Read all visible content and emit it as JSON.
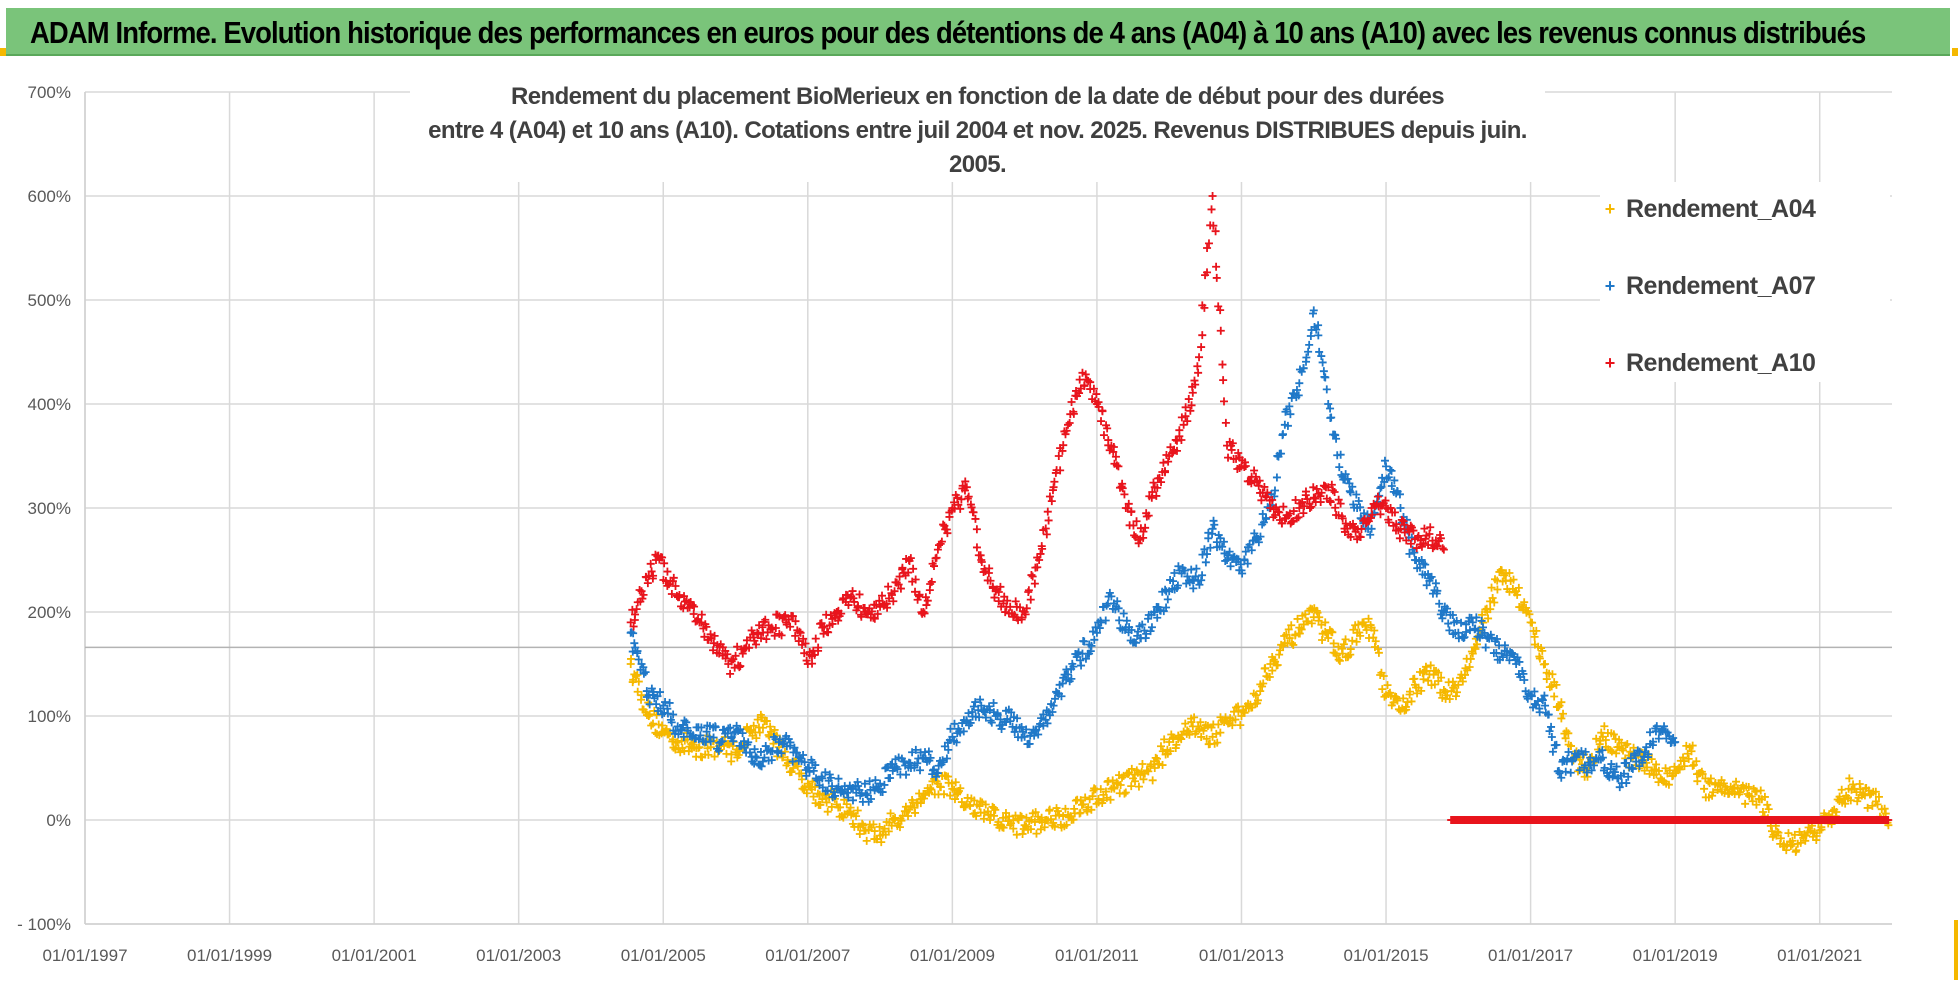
{
  "banner": {
    "title": "ADAM Informe. Evolution historique des performances en euros pour des détentions de 4 ans (A04) à 10 ans (A10) avec les revenus connus distribués"
  },
  "chart_data": {
    "type": "scatter",
    "title_line1": "Rendement du placement BioMerieux en fonction de la date de début pour des durées",
    "title_line2": "entre 4 (A04) et 10 ans (A10).  Cotations entre juil 2004 et nov. 2025. Revenus DISTRIBUES depuis juin. 2005.",
    "xlabel": "",
    "ylabel": "",
    "xlim": [
      1997.0,
      2022.0
    ],
    "ylim": [
      -100,
      700
    ],
    "y_ticks": [
      -100,
      0,
      100,
      200,
      300,
      400,
      500,
      600,
      700
    ],
    "y_tick_labels": [
      "- 100%",
      "0%",
      "100%",
      "200%",
      "300%",
      "400%",
      "500%",
      "600%",
      "700%"
    ],
    "x_ticks": [
      1997,
      1999,
      2001,
      2003,
      2005,
      2007,
      2009,
      2011,
      2013,
      2015,
      2017,
      2019,
      2021
    ],
    "x_tick_labels": [
      "01/01/1997",
      "01/01/1999",
      "01/01/2001",
      "01/01/2003",
      "01/01/2005",
      "01/01/2007",
      "01/01/2009",
      "01/01/2011",
      "01/01/2013",
      "01/01/2015",
      "01/01/2017",
      "01/01/2019",
      "01/01/2021"
    ],
    "reference_line_y": 166,
    "legend_position": "top-right",
    "series": [
      {
        "name": "Rendement_A04",
        "color": "#f5b800",
        "x": [
          2004.55,
          2004.6,
          2004.7,
          2004.8,
          2005.0,
          2005.2,
          2005.5,
          2005.8,
          2006.0,
          2006.2,
          2006.4,
          2006.6,
          2006.8,
          2007.0,
          2007.2,
          2007.4,
          2007.6,
          2007.8,
          2008.0,
          2008.2,
          2008.4,
          2008.6,
          2008.8,
          2009.0,
          2009.2,
          2009.5,
          2009.8,
          2010.0,
          2010.3,
          2010.6,
          2010.9,
          2011.2,
          2011.5,
          2011.8,
          2012.0,
          2012.2,
          2012.4,
          2012.6,
          2012.8,
          2013.0,
          2013.2,
          2013.4,
          2013.6,
          2013.8,
          2014.0,
          2014.2,
          2014.4,
          2014.6,
          2014.8,
          2015.0,
          2015.2,
          2015.4,
          2015.6,
          2015.8,
          2016.0,
          2016.2,
          2016.4,
          2016.6,
          2016.8,
          2017.0,
          2017.2,
          2017.4,
          2017.6,
          2017.8,
          2018.0,
          2018.2,
          2018.4,
          2018.6,
          2018.8,
          2019.0,
          2019.2,
          2019.4,
          2019.6,
          2019.8,
          2020.0,
          2020.2,
          2020.4,
          2020.6,
          2020.8,
          2021.0,
          2021.2,
          2021.4,
          2021.6,
          2021.8,
          2021.95
        ],
        "y": [
          150,
          140,
          120,
          100,
          85,
          75,
          70,
          72,
          65,
          85,
          95,
          70,
          50,
          35,
          20,
          15,
          5,
          -10,
          -15,
          0,
          10,
          25,
          35,
          30,
          15,
          5,
          -5,
          -5,
          0,
          5,
          20,
          30,
          40,
          50,
          75,
          85,
          90,
          80,
          95,
          100,
          120,
          150,
          170,
          185,
          195,
          175,
          160,
          180,
          185,
          120,
          105,
          130,
          140,
          125,
          130,
          160,
          200,
          240,
          220,
          190,
          150,
          110,
          60,
          50,
          80,
          70,
          60,
          55,
          40,
          45,
          70,
          30,
          35,
          30,
          25,
          20,
          -15,
          -25,
          -20,
          -10,
          10,
          30,
          25,
          15,
          -5
        ]
      },
      {
        "name": "Rendement_A07",
        "color": "#1f78c8",
        "x": [
          2004.55,
          2004.6,
          2004.7,
          2004.8,
          2005.0,
          2005.2,
          2005.4,
          2005.6,
          2005.8,
          2006.0,
          2006.2,
          2006.4,
          2006.6,
          2006.8,
          2007.0,
          2007.2,
          2007.4,
          2007.6,
          2007.8,
          2008.0,
          2008.2,
          2008.4,
          2008.6,
          2008.8,
          2009.0,
          2009.2,
          2009.4,
          2009.6,
          2009.8,
          2010.0,
          2010.2,
          2010.4,
          2010.6,
          2010.8,
          2011.0,
          2011.2,
          2011.4,
          2011.6,
          2011.8,
          2012.0,
          2012.2,
          2012.4,
          2012.6,
          2012.8,
          2013.0,
          2013.2,
          2013.4,
          2013.6,
          2013.8,
          2014.0,
          2014.2,
          2014.4,
          2014.6,
          2014.8,
          2015.0,
          2015.2,
          2015.4,
          2015.6,
          2015.8,
          2016.0,
          2016.2,
          2016.4,
          2016.6,
          2016.8,
          2017.0,
          2017.2,
          2017.4,
          2017.6,
          2017.8,
          2018.0,
          2018.2,
          2018.4,
          2018.6,
          2018.8,
          2019.0
        ],
        "y": [
          180,
          170,
          150,
          120,
          110,
          90,
          80,
          85,
          75,
          85,
          65,
          60,
          75,
          65,
          50,
          40,
          30,
          30,
          25,
          35,
          50,
          55,
          60,
          45,
          80,
          95,
          110,
          100,
          95,
          80,
          90,
          110,
          140,
          160,
          180,
          215,
          185,
          175,
          200,
          220,
          240,
          230,
          280,
          250,
          240,
          270,
          300,
          380,
          420,
          490,
          400,
          330,
          300,
          280,
          340,
          300,
          250,
          230,
          200,
          180,
          190,
          175,
          160,
          150,
          120,
          110,
          45,
          60,
          55,
          60,
          40,
          50,
          70,
          85,
          75
        ]
      },
      {
        "name": "Rendement_A10",
        "color": "#e8141c",
        "x": [
          2004.55,
          2004.7,
          2004.9,
          2005.1,
          2005.3,
          2005.5,
          2005.7,
          2005.9,
          2006.1,
          2006.3,
          2006.5,
          2006.7,
          2006.9,
          2007.0,
          2007.2,
          2007.4,
          2007.6,
          2007.8,
          2008.0,
          2008.2,
          2008.4,
          2008.6,
          2008.8,
          2009.0,
          2009.2,
          2009.4,
          2009.6,
          2009.8,
          2010.0,
          2010.2,
          2010.4,
          2010.6,
          2010.8,
          2011.0,
          2011.2,
          2011.4,
          2011.6,
          2011.8,
          2012.0,
          2012.2,
          2012.4,
          2012.6,
          2012.8,
          2013.0,
          2013.2,
          2013.4,
          2013.6,
          2013.8,
          2014.0,
          2014.2,
          2014.4,
          2014.6,
          2014.8,
          2015.0,
          2015.2,
          2015.4,
          2015.6,
          2015.8
        ],
        "y": [
          190,
          220,
          250,
          230,
          210,
          190,
          170,
          150,
          160,
          180,
          185,
          190,
          180,
          150,
          185,
          200,
          215,
          200,
          205,
          220,
          250,
          200,
          260,
          300,
          320,
          250,
          220,
          205,
          200,
          250,
          320,
          380,
          430,
          400,
          360,
          300,
          270,
          320,
          350,
          380,
          430,
          600,
          360,
          340,
          330,
          300,
          290,
          300,
          310,
          320,
          290,
          270,
          300,
          300,
          280,
          270,
          275,
          260
        ]
      }
    ],
    "flat_segment": {
      "series": "Rendement_A10",
      "x_start": 2015.9,
      "x_end": 2021.95,
      "y": 0
    }
  },
  "legend": [
    {
      "label": "Rendement_A04",
      "color": "#f5b800"
    },
    {
      "label": "Rendement_A07",
      "color": "#1f78c8"
    },
    {
      "label": "Rendement_A10",
      "color": "#e8141c"
    }
  ]
}
